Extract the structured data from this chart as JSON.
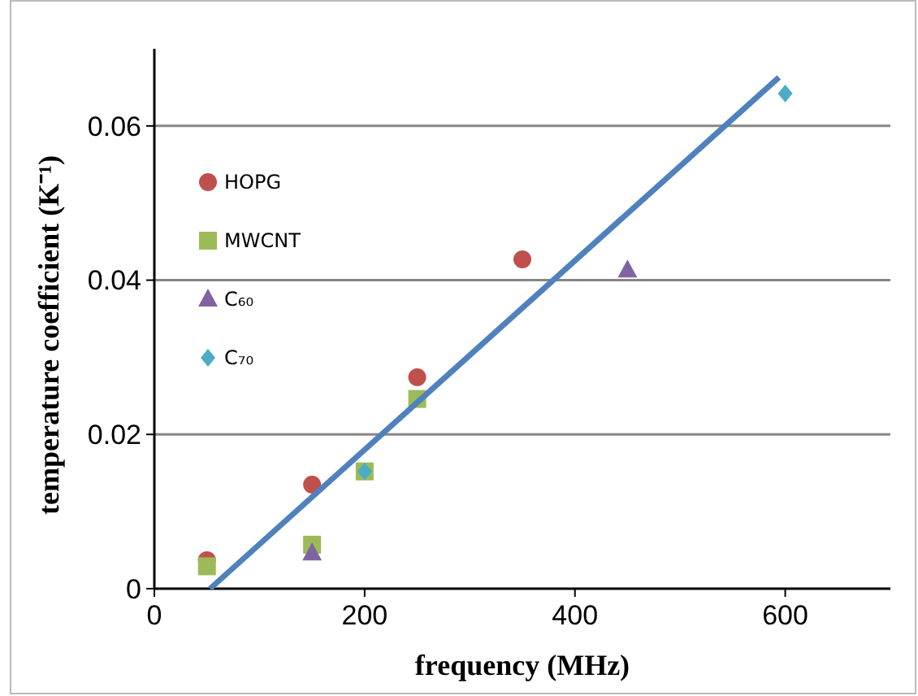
{
  "chart_data": {
    "type": "scatter",
    "xlabel": "frequency (MHz)",
    "ylabel": "temperature coefficient (K⁻¹)",
    "xlim": [
      0,
      700
    ],
    "xticks": [
      0,
      200,
      400,
      600
    ],
    "ylim": [
      0,
      0.07
    ],
    "yticks": [
      0,
      0.02,
      0.04,
      0.06
    ],
    "grid": "y",
    "legend": "top left",
    "series": [
      {
        "name": "HOPG",
        "color": "#c0504d",
        "marker": "circle",
        "x": [
          50,
          150,
          250,
          350
        ],
        "values": [
          0.0037,
          0.0135,
          0.0274,
          0.0427
        ]
      },
      {
        "name": "MWCNT",
        "color": "#9bbb59",
        "marker": "square",
        "x": [
          50,
          150,
          200,
          250
        ],
        "values": [
          0.0029,
          0.0057,
          0.0152,
          0.0246
        ]
      },
      {
        "name": "C₆₀",
        "color": "#8064a2",
        "marker": "triangle",
        "x": [
          150,
          450
        ],
        "values": [
          0.0046,
          0.0413
        ]
      },
      {
        "name": "C₇₀",
        "color": "#4bacc6",
        "marker": "diamond",
        "x": [
          200,
          600
        ],
        "values": [
          0.0152,
          0.0642
        ]
      },
      {
        "type": "line",
        "color": "#4f81bd",
        "marker": "none",
        "x": [
          53,
          594
        ],
        "values": [
          0,
          0.0663
        ]
      }
    ]
  }
}
